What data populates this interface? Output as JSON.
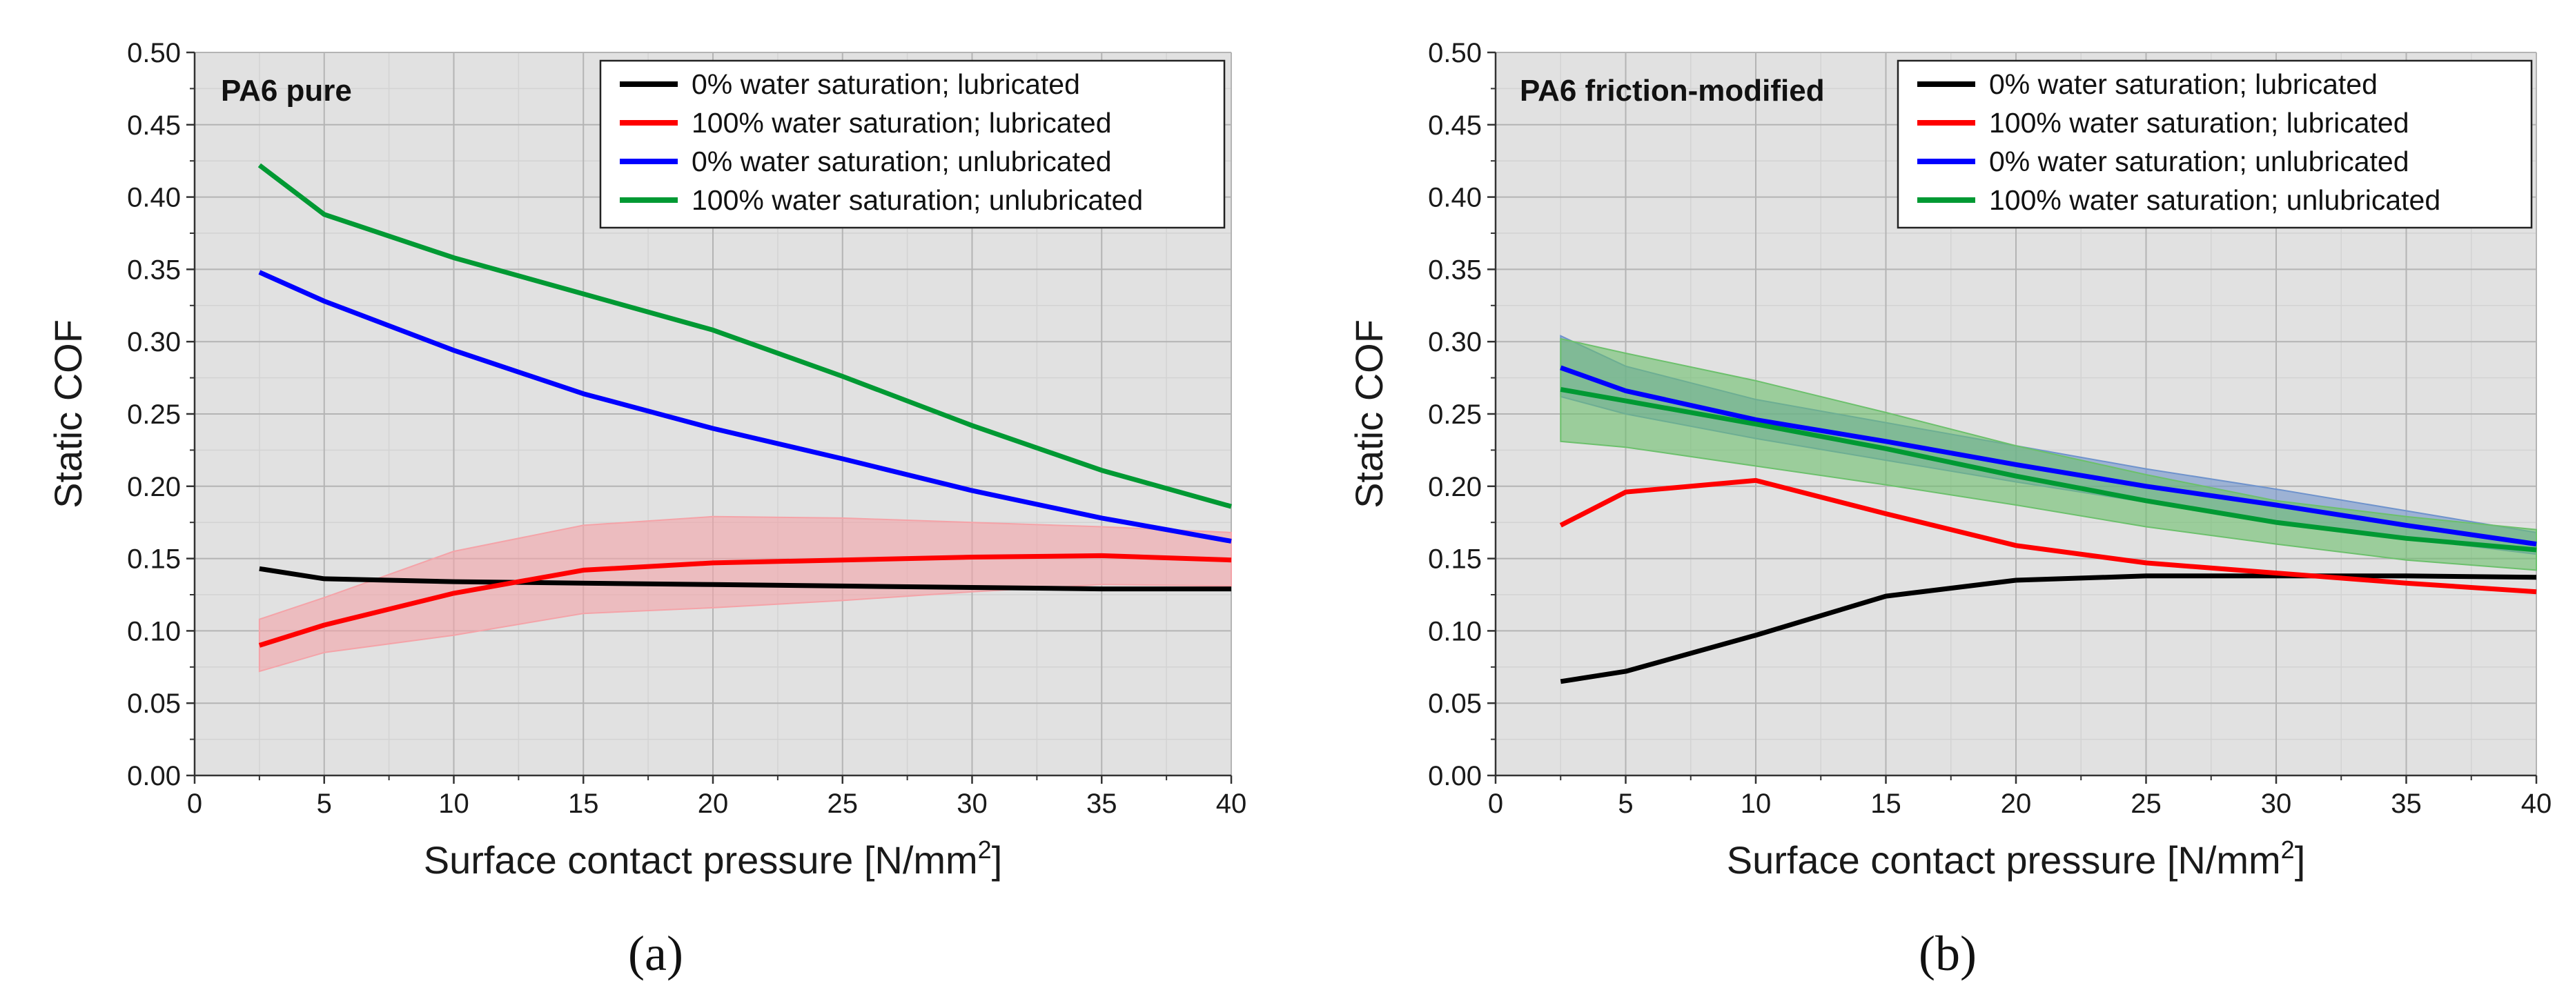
{
  "chart_data": [
    {
      "type": "line",
      "panel_label": "(a)",
      "title": "PA6 pure",
      "xlabel": "Surface contact pressure [N/mm",
      "xlabel_superscript": "2",
      "xlabel_suffix": "]",
      "ylabel": "Static COF",
      "xlim": [
        0,
        40
      ],
      "ylim": [
        0,
        0.5
      ],
      "xticks": [
        0,
        5,
        10,
        15,
        20,
        25,
        30,
        35,
        40
      ],
      "yticks": [
        "0.00",
        "0.05",
        "0.10",
        "0.15",
        "0.20",
        "0.25",
        "0.30",
        "0.35",
        "0.40",
        "0.45",
        "0.50"
      ],
      "grid": true,
      "legend_position": "top-right",
      "x": [
        2.5,
        5,
        10,
        15,
        20,
        25,
        30,
        35,
        40
      ],
      "series": [
        {
          "name": "0% water saturation; lubricated",
          "color": "#000000",
          "values": [
            0.143,
            0.136,
            0.134,
            0.133,
            0.132,
            0.131,
            0.13,
            0.129,
            0.129
          ]
        },
        {
          "name": "100% water saturation; lubricated",
          "color": "#ff0000",
          "values": [
            0.09,
            0.104,
            0.126,
            0.142,
            0.147,
            0.149,
            0.151,
            0.152,
            0.149
          ],
          "band_lower": [
            0.072,
            0.085,
            0.097,
            0.112,
            0.116,
            0.121,
            0.127,
            0.132,
            0.131
          ],
          "band_upper": [
            0.108,
            0.123,
            0.155,
            0.173,
            0.179,
            0.178,
            0.175,
            0.172,
            0.168
          ],
          "band_color": "#f4a3a8"
        },
        {
          "name": "0% water saturation; unlubricated",
          "color": "#0000ff",
          "values": [
            0.348,
            0.328,
            0.294,
            0.264,
            0.24,
            0.219,
            0.197,
            0.178,
            0.162
          ]
        },
        {
          "name": "100% water saturation; unlubricated",
          "color": "#009933",
          "values": [
            0.422,
            0.388,
            0.358,
            0.333,
            0.308,
            0.276,
            0.242,
            0.211,
            0.186
          ]
        }
      ]
    },
    {
      "type": "line",
      "panel_label": "(b)",
      "title": "PA6 friction-modified",
      "xlabel": "Surface contact pressure [N/mm",
      "xlabel_superscript": "2",
      "xlabel_suffix": "]",
      "ylabel": "Static COF",
      "xlim": [
        0,
        40
      ],
      "ylim": [
        0,
        0.5
      ],
      "xticks": [
        0,
        5,
        10,
        15,
        20,
        25,
        30,
        35,
        40
      ],
      "yticks": [
        "0.00",
        "0.05",
        "0.10",
        "0.15",
        "0.20",
        "0.25",
        "0.30",
        "0.35",
        "0.40",
        "0.45",
        "0.50"
      ],
      "grid": true,
      "legend_position": "top-right",
      "x": [
        2.5,
        5,
        10,
        15,
        20,
        25,
        30,
        35,
        40
      ],
      "series": [
        {
          "name": "0% water saturation; lubricated",
          "color": "#000000",
          "values": [
            0.065,
            0.072,
            0.097,
            0.124,
            0.135,
            0.138,
            0.138,
            0.138,
            0.137
          ]
        },
        {
          "name": "100% water saturation; lubricated",
          "color": "#ff0000",
          "values": [
            0.173,
            0.196,
            0.204,
            0.181,
            0.159,
            0.147,
            0.14,
            0.133,
            0.127
          ]
        },
        {
          "name": "0% water saturation; unlubricated",
          "color": "#0000ff",
          "values": [
            0.282,
            0.266,
            0.246,
            0.231,
            0.215,
            0.2,
            0.187,
            0.173,
            0.16
          ],
          "band_lower": [
            0.262,
            0.25,
            0.233,
            0.218,
            0.203,
            0.189,
            0.176,
            0.164,
            0.153
          ],
          "band_upper": [
            0.304,
            0.283,
            0.26,
            0.244,
            0.228,
            0.212,
            0.198,
            0.183,
            0.168
          ],
          "band_color": "#6f93cc"
        },
        {
          "name": "100% water saturation; unlubricated",
          "color": "#009933",
          "values": [
            0.267,
            0.259,
            0.243,
            0.226,
            0.207,
            0.19,
            0.175,
            0.164,
            0.156
          ],
          "band_lower": [
            0.231,
            0.227,
            0.214,
            0.201,
            0.187,
            0.172,
            0.16,
            0.149,
            0.142
          ],
          "band_upper": [
            0.302,
            0.292,
            0.273,
            0.251,
            0.228,
            0.208,
            0.19,
            0.179,
            0.17
          ],
          "band_color": "#6cc06c"
        }
      ]
    }
  ]
}
